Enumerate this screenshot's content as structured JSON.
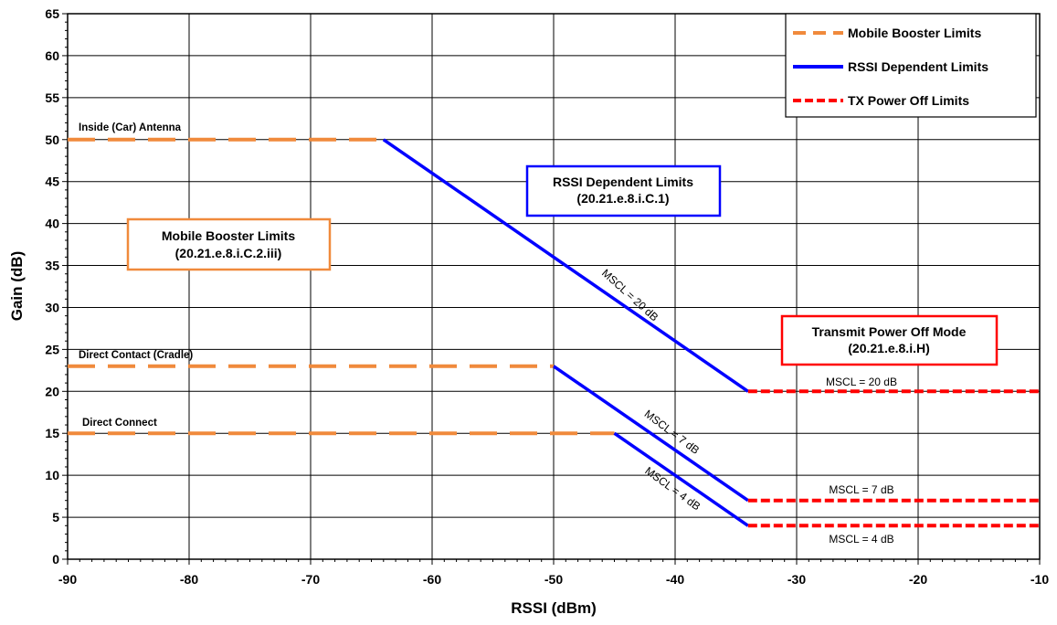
{
  "chart_data": {
    "type": "line",
    "title": "",
    "xlabel": "RSSI (dBm)",
    "ylabel": "Gain (dB)",
    "xlim": [
      -90,
      -10
    ],
    "ylim": [
      0,
      65
    ],
    "x_ticks": [
      -90,
      -80,
      -70,
      -60,
      -50,
      -40,
      -30,
      -20,
      -10
    ],
    "y_ticks": [
      0,
      5,
      10,
      15,
      20,
      25,
      30,
      35,
      40,
      45,
      50,
      55,
      60,
      65
    ],
    "grid": true,
    "legend_position": "top-right",
    "legend": [
      {
        "name": "Mobile Booster Limits",
        "color": "#f08a3c",
        "style": "dashed"
      },
      {
        "name": "RSSI Dependent Limits",
        "color": "#0000ff",
        "style": "solid"
      },
      {
        "name": "TX Power Off Limits",
        "color": "#ff0000",
        "style": "dashed"
      }
    ],
    "series": [
      {
        "group": "mobile_booster",
        "points": [
          [
            -90,
            50
          ],
          [
            -64,
            50
          ]
        ]
      },
      {
        "group": "mobile_booster",
        "points": [
          [
            -90,
            23
          ],
          [
            -50,
            23
          ]
        ]
      },
      {
        "group": "mobile_booster",
        "points": [
          [
            -90,
            15
          ],
          [
            -45,
            15
          ]
        ]
      },
      {
        "group": "rssi_dependent",
        "points": [
          [
            -64,
            50
          ],
          [
            -34,
            20
          ]
        ]
      },
      {
        "group": "rssi_dependent",
        "points": [
          [
            -50,
            23
          ],
          [
            -34,
            7
          ]
        ]
      },
      {
        "group": "rssi_dependent",
        "points": [
          [
            -45,
            15
          ],
          [
            -34,
            4
          ]
        ]
      },
      {
        "group": "tx_power_off",
        "points": [
          [
            -34,
            20
          ],
          [
            -10,
            20
          ]
        ]
      },
      {
        "group": "tx_power_off",
        "points": [
          [
            -34,
            7
          ],
          [
            -10,
            7
          ]
        ]
      },
      {
        "group": "tx_power_off",
        "points": [
          [
            -34,
            4
          ],
          [
            -10,
            4
          ]
        ]
      }
    ],
    "annotations": {
      "line_labels": [
        "Inside (Car) Antenna",
        "Direct Contact (Cradle)",
        "Direct Connect"
      ],
      "mscl_sloped": [
        "MSCL = 20 dB",
        "MSCL = 7 dB",
        "MSCL = 4 dB"
      ],
      "mscl_flat": [
        "MSCL = 20 dB",
        "MSCL = 7 dB",
        "MSCL = 4 dB"
      ],
      "boxes": [
        {
          "line1": "Mobile Booster  Limits",
          "line2": "(20.21.e.8.i.C.2.iii)",
          "color": "#f08a3c"
        },
        {
          "line1": "RSSI Dependent Limits",
          "line2": "(20.21.e.8.i.C.1)",
          "color": "#0000ff"
        },
        {
          "line1": "Transmit Power Off Mode",
          "line2": "(20.21.e.8.i.H)",
          "color": "#ff0000"
        }
      ]
    }
  }
}
